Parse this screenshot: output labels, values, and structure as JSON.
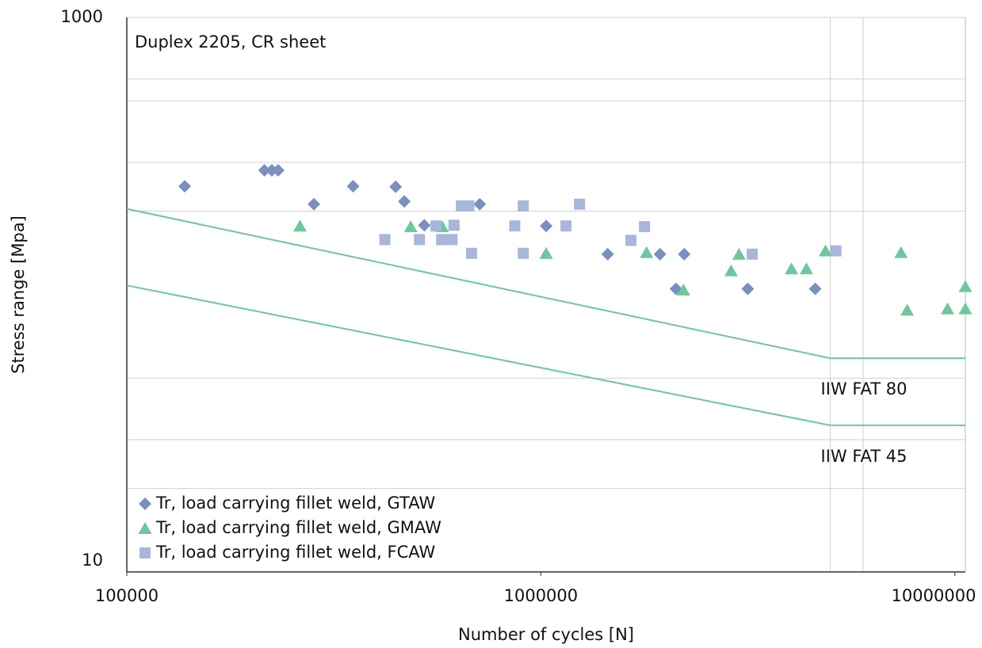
{
  "chart_data": {
    "type": "scatter",
    "title": "Duplex 2205, CR sheet",
    "x_label": "Number of cycles [N]",
    "y_label": "Stress range [Mpa]",
    "xlog": true,
    "ylog": true,
    "xlim": [
      100000,
      10600000
    ],
    "ylim": [
      10,
      1000
    ],
    "xticks": [
      100000,
      1000000,
      10000000
    ],
    "yticks": [
      10,
      1000
    ],
    "xgrid": [
      5000000,
      6000000
    ],
    "ygrid": [
      20,
      30,
      50,
      200,
      300,
      500,
      600
    ],
    "legend": "lower left",
    "series": [
      {
        "name": "Tr, load carrying fillet weld, GTAW",
        "color": "#7b8fc0",
        "marker": "diamond",
        "x": [
          138000,
          215000,
          224000,
          232000,
          283000,
          352000,
          446000,
          468000,
          523000,
          712000,
          1030000,
          1450000,
          1940000,
          2120000,
          2220000,
          3160000,
          4600000
        ],
        "values": [
          246,
          281,
          281,
          281,
          212,
          246,
          245,
          217,
          178,
          212,
          177,
          140,
          140,
          105,
          140,
          105,
          105
        ]
      },
      {
        "name": "Tr, load carrying fillet weld, GMAW",
        "color": "#6dc79a",
        "marker": "triangle",
        "x": [
          262000,
          485000,
          578000,
          1030000,
          1800000,
          2210000,
          2880000,
          3010000,
          4030000,
          4380000,
          4870000,
          7410000,
          7670000,
          9600000,
          10600000,
          10600000
        ],
        "values": [
          177,
          176,
          176,
          141,
          142,
          104,
          122,
          140,
          124,
          124,
          144,
          142,
          88,
          89,
          107,
          89
        ]
      },
      {
        "name": "Tr, load carrying fillet weld, FCAW",
        "color": "#a9b6db",
        "marker": "square",
        "x": [
          420000,
          509000,
          558000,
          576000,
          610000,
          617000,
          643000,
          670000,
          680000,
          865000,
          907000,
          907000,
          1150000,
          1240000,
          1650000,
          1780000,
          3240000,
          5160000
        ],
        "values": [
          158,
          158,
          177,
          158,
          158,
          178,
          209,
          209,
          141,
          177,
          209,
          141,
          177,
          212,
          157,
          176,
          140,
          144
        ]
      }
    ],
    "lines": [
      {
        "name": "IIW FAT 80",
        "color": "#6dc79a",
        "x": [
          100000,
          5000000,
          10600000
        ],
        "values": [
          204,
          59,
          59
        ]
      },
      {
        "name": "IIW FAT 45",
        "color": "#6dc79a",
        "x": [
          100000,
          5000000,
          10600000
        ],
        "values": [
          108,
          33.8,
          33.8
        ]
      }
    ]
  }
}
